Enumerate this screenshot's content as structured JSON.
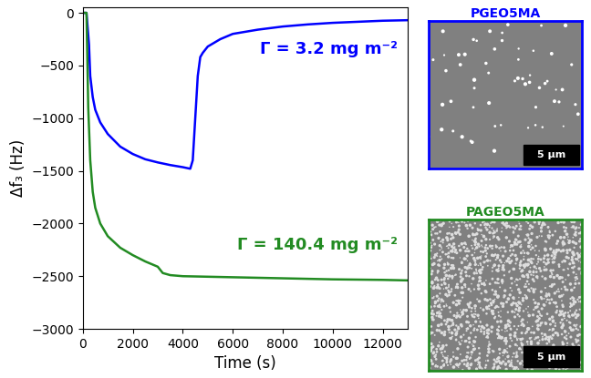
{
  "chart_data": {
    "type": "line",
    "x_label": "Time (s)",
    "y_label": "Δf₃ (Hz)",
    "xlim": [
      0,
      13000
    ],
    "xticks": [
      0,
      2000,
      4000,
      6000,
      8000,
      10000,
      12000
    ],
    "ylim": [
      -3000,
      50
    ],
    "yticks": [
      {
        "value": -3000,
        "label": "−3000"
      },
      {
        "value": -2500,
        "label": "−2500"
      },
      {
        "value": -2000,
        "label": "−2000"
      },
      {
        "value": -1500,
        "label": "−1500"
      },
      {
        "value": -1000,
        "label": "−1000"
      },
      {
        "value": -500,
        "label": "−500"
      },
      0
    ],
    "annotations": [
      "Γ = 3.2 mg m⁻²",
      "Γ = 140.4 mg m⁻²"
    ],
    "series": [
      {
        "color": "#0000ff",
        "x": [
          0,
          150,
          250,
          300,
          400,
          500,
          700,
          1000,
          1500,
          2000,
          2500,
          3000,
          3500,
          4000,
          4300,
          4400,
          4500,
          4600,
          4700,
          4800,
          5000,
          5500,
          6000,
          7000,
          8000,
          9000,
          10000,
          11000,
          12000,
          13000
        ],
        "values": [
          0,
          0,
          -300,
          -600,
          -800,
          -920,
          -1040,
          -1150,
          -1270,
          -1340,
          -1390,
          -1420,
          -1445,
          -1465,
          -1480,
          -1400,
          -1000,
          -600,
          -420,
          -380,
          -320,
          -250,
          -200,
          -160,
          -130,
          -110,
          -95,
          -85,
          -75,
          -70
        ]
      },
      {
        "color": "#228b22",
        "x": [
          0,
          150,
          220,
          300,
          400,
          500,
          700,
          1000,
          1500,
          2000,
          2500,
          2900,
          3000,
          3200,
          3500,
          4000,
          5000,
          6000,
          8000,
          10000,
          12000,
          13000
        ],
        "values": [
          0,
          0,
          -900,
          -1400,
          -1700,
          -1850,
          -2000,
          -2120,
          -2230,
          -2300,
          -2360,
          -2400,
          -2410,
          -2470,
          -2490,
          -2500,
          -2505,
          -2510,
          -2520,
          -2530,
          -2535,
          -2540
        ]
      }
    ]
  },
  "images": [
    {
      "title": "PGEO5MA",
      "color": "#0000ff",
      "scale_bar": "5 µm"
    },
    {
      "title": "PAGEO5MA",
      "color": "#228b22",
      "scale_bar": "5 µm"
    }
  ]
}
